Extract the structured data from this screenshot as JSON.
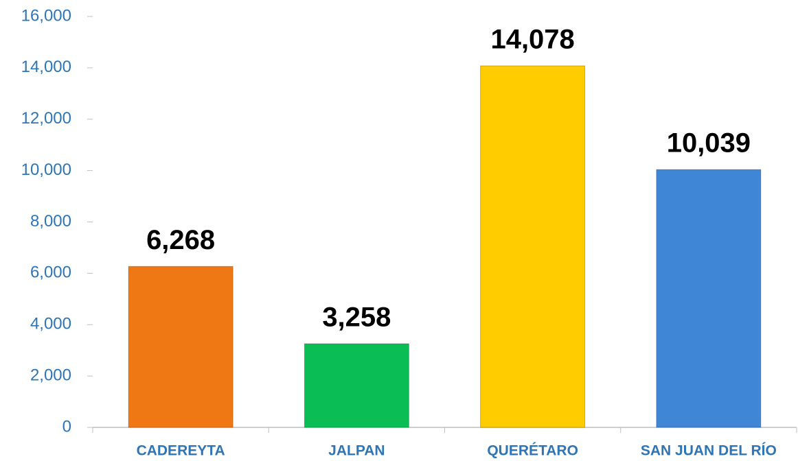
{
  "chart_data": {
    "type": "bar",
    "categories": [
      "CADEREYTA",
      "JALPAN",
      "QUERÉTARO",
      "SAN JUAN DEL RÍO"
    ],
    "values": [
      6268,
      3258,
      14078,
      10039
    ],
    "value_labels": [
      "6,268",
      "3,258",
      "14,078",
      "10,039"
    ],
    "colors": [
      "#f07814",
      "#0bbd55",
      "#ffcc00",
      "#3f86d6"
    ],
    "ylim": [
      0,
      16000
    ],
    "yticks": [
      0,
      {
        "value": 2000,
        "label": "2,000"
      },
      {
        "value": 4000,
        "label": "4,000"
      },
      {
        "value": 6000,
        "label": "6,000"
      },
      {
        "value": 8000,
        "label": "8,000"
      },
      {
        "value": 10000,
        "label": "10,000"
      },
      {
        "value": 12000,
        "label": "12,000"
      },
      {
        "value": 14000,
        "label": "14,000"
      },
      {
        "value": 16000,
        "label": "16,000"
      }
    ],
    "grid": false
  }
}
